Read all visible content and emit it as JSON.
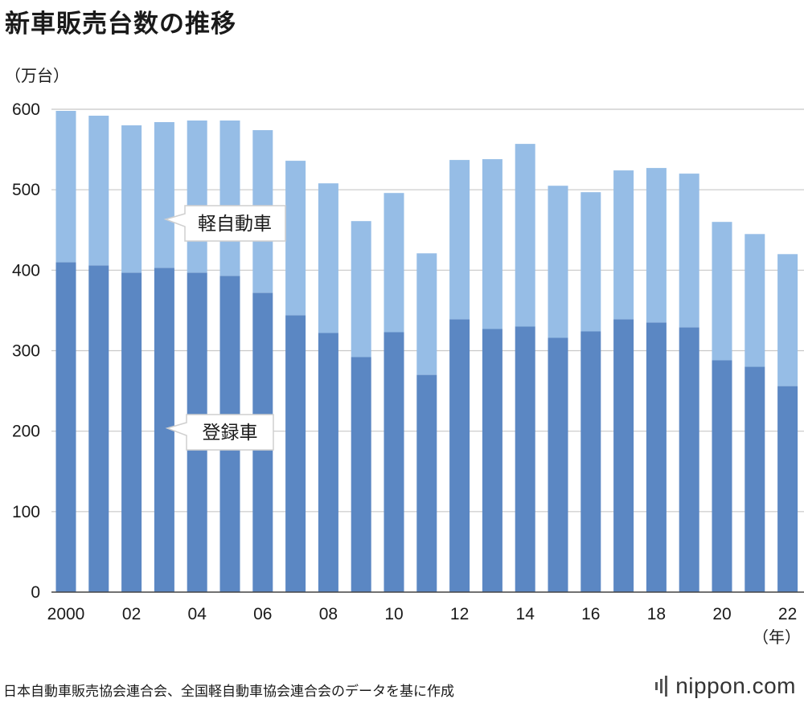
{
  "title": "新車販売台数の推移",
  "source": "日本自動車販売協会連合会、全国軽自動車協会連合会のデータを基に作成",
  "brand": "nippon.com",
  "colors": {
    "registered": "#5b87c3",
    "kei": "#96bde6",
    "grid": "#c8c8c8",
    "axis": "#444444"
  },
  "chart_data": {
    "type": "bar",
    "stacked": true,
    "categories": [
      "2000",
      "01",
      "02",
      "03",
      "04",
      "05",
      "06",
      "07",
      "08",
      "09",
      "10",
      "11",
      "12",
      "13",
      "14",
      "15",
      "16",
      "17",
      "18",
      "19",
      "20",
      "21",
      "22"
    ],
    "tick_labels": [
      "2000",
      "",
      "02",
      "",
      "04",
      "",
      "06",
      "",
      "08",
      "",
      "10",
      "",
      "12",
      "",
      "14",
      "",
      "16",
      "",
      "18",
      "",
      "20",
      "",
      "22"
    ],
    "series": [
      {
        "name": "登録車",
        "values": [
          410,
          406,
          397,
          403,
          397,
          393,
          372,
          344,
          322,
          292,
          323,
          270,
          339,
          327,
          330,
          316,
          324,
          339,
          335,
          329,
          288,
          280,
          256
        ]
      },
      {
        "name": "軽自動車",
        "values": [
          188,
          186,
          183,
          181,
          189,
          193,
          202,
          192,
          186,
          169,
          173,
          151,
          198,
          211,
          227,
          189,
          173,
          185,
          192,
          191,
          172,
          165,
          164
        ]
      }
    ],
    "ylabel": "（万台）",
    "xlabel": "（年）",
    "ylim": [
      0,
      600
    ],
    "yticks": [
      0,
      100,
      200,
      300,
      400,
      500,
      600
    ],
    "grid": true,
    "legend": "callouts"
  }
}
